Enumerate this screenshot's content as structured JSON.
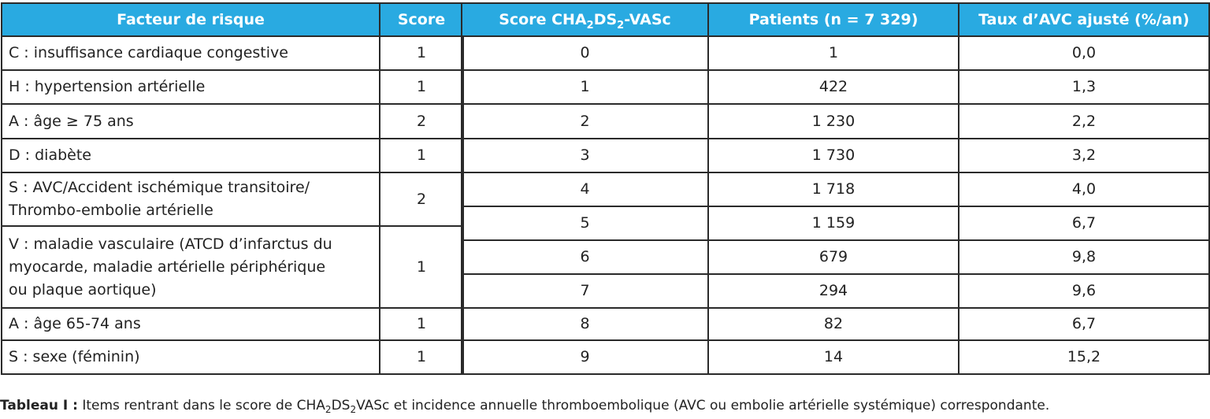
{
  "risk_table": {
    "headers": {
      "factor": "Facteur de risque",
      "score": "Score"
    },
    "rows": [
      {
        "factor": "C : insuffisance cardiaque congestive",
        "score": "1"
      },
      {
        "factor": "H : hypertension artérielle",
        "score": "1"
      },
      {
        "factor": "A : âge ≥ 75 ans",
        "score": "2"
      },
      {
        "factor": "D : diabète",
        "score": "1"
      },
      {
        "factor_line1": "S : AVC/Accident ischémique transitoire/",
        "factor_line2": "Thrombo-embolie artérielle",
        "score": "2"
      },
      {
        "factor_line1": "V : maladie vasculaire (ATCD d’infarctus du",
        "factor_line2": "myocarde, maladie artérielle périphérique",
        "factor_line3": "ou plaque aortique)",
        "score": "1"
      },
      {
        "factor": "A : âge 65-74 ans",
        "score": "1"
      },
      {
        "factor": "S : sexe (féminin)",
        "score": "1"
      }
    ]
  },
  "score_table": {
    "headers": {
      "score_pre": "Score CHA",
      "score_sub1": "2",
      "score_mid": "DS",
      "score_sub2": "2",
      "score_post": "-VASc",
      "patients": "Patients (n = 7 329)",
      "rate": "Taux d’AVC ajusté (%/an)"
    },
    "rows": [
      {
        "score": "0",
        "patients": "1",
        "rate": "0,0"
      },
      {
        "score": "1",
        "patients": "422",
        "rate": "1,3"
      },
      {
        "score": "2",
        "patients": "1 230",
        "rate": "2,2"
      },
      {
        "score": "3",
        "patients": "1 730",
        "rate": "3,2"
      },
      {
        "score": "4",
        "patients": "1 718",
        "rate": "4,0"
      },
      {
        "score": "5",
        "patients": "1 159",
        "rate": "6,7"
      },
      {
        "score": "6",
        "patients": "679",
        "rate": "9,8"
      },
      {
        "score": "7",
        "patients": "294",
        "rate": "9,6"
      },
      {
        "score": "8",
        "patients": "82",
        "rate": "6,7"
      },
      {
        "score": "9",
        "patients": "14",
        "rate": "15,2"
      }
    ]
  },
  "caption": {
    "label": "Tableau I :",
    "text_pre": " Items rentrant dans le score de CHA",
    "sub1": "2",
    "text_mid": "DS",
    "sub2": "2",
    "text_post": "VASc et incidence annuelle thromboembolique (AVC ou embolie artérielle systémique) correspondante."
  },
  "colors": {
    "header_bg": "#29aae1",
    "header_text": "#ffffff",
    "border": "#2a2a2a"
  }
}
